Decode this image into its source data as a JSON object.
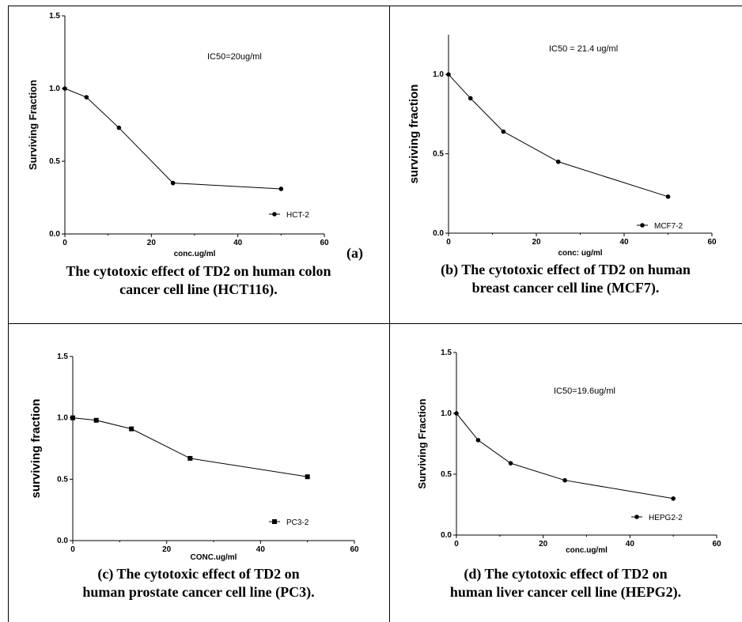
{
  "panels": [
    {
      "caption_line1": "The cytotoxic effect of TD2 on human colon",
      "caption_line2": "cancer cell line (HCT116).",
      "panel_letter": "(a)"
    },
    {
      "caption_line1": "(b) The cytotoxic effect of TD2 on human",
      "caption_line2": "breast cancer cell line (MCF7).",
      "panel_letter": ""
    },
    {
      "caption_line1": "(c) The cytotoxic effect of TD2 on",
      "caption_line2": "human prostate cancer cell line (PC3).",
      "panel_letter": ""
    },
    {
      "caption_line1": "(d) The cytotoxic effect of TD2 on",
      "caption_line2": "human liver cancer cell line (HEPG2).",
      "panel_letter": ""
    }
  ],
  "chart_data": [
    {
      "type": "line",
      "xlabel": "conc.ug/ml",
      "ylabel": "Surviving Fraction",
      "annotation": "IC50=20ug/ml",
      "xlim": [
        0,
        60
      ],
      "ylim": [
        0,
        1.5
      ],
      "xticks": [
        "0",
        "20",
        "40",
        "60"
      ],
      "yticks": [
        "0.0",
        "0.5",
        "1.0",
        "1.5"
      ],
      "marker": "circle",
      "series": [
        {
          "name": "HCT-2",
          "x": [
            0,
            5,
            12.5,
            25,
            50
          ],
          "y": [
            1.0,
            0.94,
            0.73,
            0.35,
            0.31
          ]
        }
      ]
    },
    {
      "type": "line",
      "xlabel": "conc: ug/ml",
      "ylabel": "surviving fraction",
      "annotation": "IC50 = 21.4 ug/ml",
      "xlim": [
        0,
        60
      ],
      "ylim": [
        0,
        1.25
      ],
      "xticks": [
        "0",
        "20",
        "40",
        "60"
      ],
      "yticks": [
        "0.0",
        "0.5",
        "1.0"
      ],
      "marker": "circle",
      "series": [
        {
          "name": "MCF7-2",
          "x": [
            0,
            5,
            12.5,
            25,
            50
          ],
          "y": [
            1.0,
            0.85,
            0.64,
            0.45,
            0.23
          ]
        }
      ]
    },
    {
      "type": "line",
      "xlabel": "CONC.ug/ml",
      "ylabel": "surviving fraction",
      "annotation": "",
      "xlim": [
        0,
        60
      ],
      "ylim": [
        0,
        1.5
      ],
      "xticks": [
        "0",
        "20",
        "40",
        "60"
      ],
      "yticks": [
        "0.0",
        "0.5",
        "1.0",
        "1.5"
      ],
      "marker": "square",
      "series": [
        {
          "name": "PC3-2",
          "x": [
            0,
            5,
            12.5,
            25,
            50
          ],
          "y": [
            1.0,
            0.98,
            0.91,
            0.67,
            0.52
          ]
        }
      ]
    },
    {
      "type": "line",
      "xlabel": "conc.ug/ml",
      "ylabel": "Surviving Fraction",
      "annotation": "IC50=19.6ug/ml",
      "xlim": [
        0,
        60
      ],
      "ylim": [
        0,
        1.5
      ],
      "xticks": [
        "0",
        "20",
        "40",
        "60"
      ],
      "yticks": [
        "0.0",
        "0.5",
        "1.0",
        "1.5"
      ],
      "marker": "circle",
      "series": [
        {
          "name": "HEPG2-2",
          "x": [
            0,
            5,
            12.5,
            25,
            50
          ],
          "y": [
            1.0,
            0.78,
            0.59,
            0.45,
            0.3
          ]
        }
      ]
    }
  ]
}
